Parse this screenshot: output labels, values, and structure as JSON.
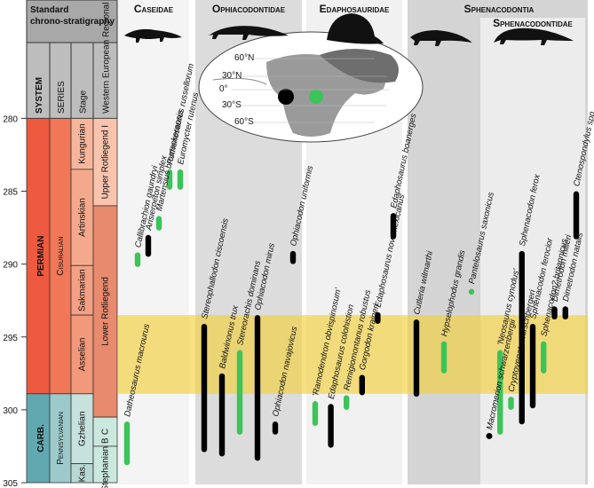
{
  "chart_data": {
    "type": "range",
    "ylim": [
      305,
      272
    ],
    "yticks": [
      280,
      285,
      290,
      295,
      300,
      305
    ],
    "highlight": [
      293.5,
      298.9
    ],
    "strat": {
      "header": "Standard chrono-stratigraphy",
      "columns": [
        "SYSTEM",
        "SERIES",
        "Stage",
        "Western European Regional Stages"
      ],
      "systems": [
        {
          "name": "PERMIAN",
          "range": [
            280,
            298.9
          ],
          "color": "#ee5a3f"
        },
        {
          "name": "CARB.",
          "range": [
            298.9,
            305
          ],
          "color": "#62a8b0"
        }
      ],
      "series": [
        {
          "name": "Cisuralian",
          "range": [
            280,
            298.9
          ],
          "color": "#f07758"
        },
        {
          "name": "Pennsylvanian",
          "range": [
            298.9,
            305
          ],
          "color": "#9ccaca"
        }
      ],
      "stages": [
        {
          "name": "Kungurian",
          "range": [
            280,
            283.5
          ],
          "color": "#f6b69c"
        },
        {
          "name": "Artinskian",
          "range": [
            283.5,
            290.1
          ],
          "color": "#f5a98c"
        },
        {
          "name": "Sakmarian",
          "range": [
            290.1,
            293.5
          ],
          "color": "#f4a084"
        },
        {
          "name": "Asselian",
          "range": [
            293.5,
            298.9
          ],
          "color": "#f2987b"
        },
        {
          "name": "Gzhelian",
          "range": [
            298.9,
            303.7
          ],
          "color": "#c7e2dc"
        },
        {
          "name": "Kas.",
          "range": [
            303.7,
            305
          ],
          "color": "#b8d9d3"
        }
      ],
      "regional": [
        {
          "name": "Upper Rotliegend I",
          "range": [
            280,
            286
          ],
          "color": "#f8c4ae"
        },
        {
          "name": "Lower Rotliegend",
          "range": [
            286,
            300.5
          ],
          "color": "#e88a6e"
        },
        {
          "name": "C",
          "range": [
            300.5,
            302.5
          ],
          "color": "#cbe8de"
        },
        {
          "name": "Stephanian B",
          "range": [
            302.5,
            305
          ],
          "color": "#cbe8de"
        }
      ]
    },
    "map": {
      "latitudes": [
        "60°N",
        "30°N",
        "0°",
        "30°S",
        "60°S"
      ]
    },
    "supergroup": "Sphenacodontia",
    "groups": [
      {
        "name": "Caseidae",
        "taxa": [
          {
            "name": "Datheosaurus macrourus",
            "range": [
              300.8,
              303.8
            ],
            "color": "#3cc35a"
          },
          {
            "name": "Callibrachion gaundryi",
            "range": [
              289.2,
              290.2
            ],
            "color": "#3cc35a"
          },
          {
            "name": "Arisierpeton simplex",
            "range": [
              288,
              289.5
            ],
            "color": "#000000"
          },
          {
            "name": "Martensius bromackerensis",
            "range": [
              286.7,
              287.7
            ],
            "color": "#3cc35a"
          },
          {
            "name": "Ruthenosaurus russellorum",
            "range": [
              283.5,
              284.9
            ],
            "color": "#3cc35a"
          },
          {
            "name": "Euromycter rutenus",
            "range": [
              283.5,
              284.9
            ],
            "color": "#3cc35a"
          }
        ]
      },
      {
        "name": "Ophiacodontidae",
        "taxa": [
          {
            "name": "Stereophallodon ciscoensis",
            "range": [
              294.1,
              302.9
            ],
            "color": "#000000"
          },
          {
            "name": "Baldwinonus trux",
            "range": [
              297.5,
              303.2
            ],
            "color": "#000000"
          },
          {
            "name": "Stereorachis dominans",
            "range": [
              295.9,
              301.7
            ],
            "color": "#3cc35a"
          },
          {
            "name": "Ophiacodon mirus",
            "range": [
              293.5,
              303.5
            ],
            "color": "#000000"
          },
          {
            "name": "Ophiacodon navajovicus",
            "range": [
              300.8,
              301.7
            ],
            "color": "#000000"
          },
          {
            "name": "Ophiacodon uniformis",
            "range": [
              289.1,
              290
            ],
            "color": "#000000"
          }
        ]
      },
      {
        "name": "Edaphosauridae",
        "taxa": [
          {
            "name": "'Ramodendron obvispinosum'",
            "range": [
              299.4,
              301.1
            ],
            "color": "#3cc35a"
          },
          {
            "name": "Edaphosaurus colohistion",
            "range": [
              299.6,
              302.6
            ],
            "color": "#000000"
          },
          {
            "name": "Remigiomontanus robustus",
            "range": [
              299,
              300
            ],
            "color": "#3cc35a"
          },
          {
            "name": "Gorgodon kraineri",
            "range": [
              297.6,
              299
            ],
            "color": "#000000"
          },
          {
            "name": "Edaphosaurus novomexicanus",
            "range": [
              293.3,
              294.1
            ],
            "color": "#000000"
          },
          {
            "name": "Edaphosaurus boanerges",
            "range": [
              286.5,
              288.3
            ],
            "color": "#000000"
          }
        ]
      },
      {
        "taxa": [
          {
            "name": "Cutleria wilmarthi",
            "range": [
              293.8,
              299.1
            ],
            "color": "#000000"
          },
          {
            "name": "Hypselophodus grandis",
            "range": [
              295.3,
              297.5
            ],
            "color": "#3cc35a"
          },
          {
            "name": "Pantelosaurus saxonicus",
            "range": [
              291.7,
              292.1
            ],
            "color": "#3cc35a"
          }
        ]
      },
      {
        "name": "Sphenacodontidae",
        "taxa": [
          {
            "name": "Macromerion schwarzenbergii",
            "range": [
              301.7,
              301.9
            ],
            "color": "#000000"
          },
          {
            "name": "'Neosaurus cynodus'",
            "range": [
              295.9,
              301.7
            ],
            "color": "#3cc35a"
          },
          {
            "name": "Cryptovenator hirschbergeri",
            "range": [
              299.1,
              300
            ],
            "color": "#3cc35a"
          },
          {
            "name": "Sphenacodon ferox",
            "range": [
              289.1,
              301
            ],
            "color": "#000000"
          },
          {
            "name": "Sphenacodon ferocior",
            "range": [
              294.1,
              299.9
            ],
            "color": "#000000"
          },
          {
            "name": "Sphenacodon? britannicus",
            "range": [
              295.3,
              297.5
            ],
            "color": "#3cc35a"
          },
          {
            "name": "Dimetrodon milleri",
            "range": [
              292.9,
              293.8
            ],
            "color": "#000000"
          },
          {
            "name": "Dimetrodon natalis",
            "range": [
              292.9,
              293.8
            ],
            "color": "#000000"
          },
          {
            "name": "Ctenospondylus spp.",
            "range": [
              285,
              288.3
            ],
            "color": "#000000"
          }
        ]
      }
    ]
  }
}
